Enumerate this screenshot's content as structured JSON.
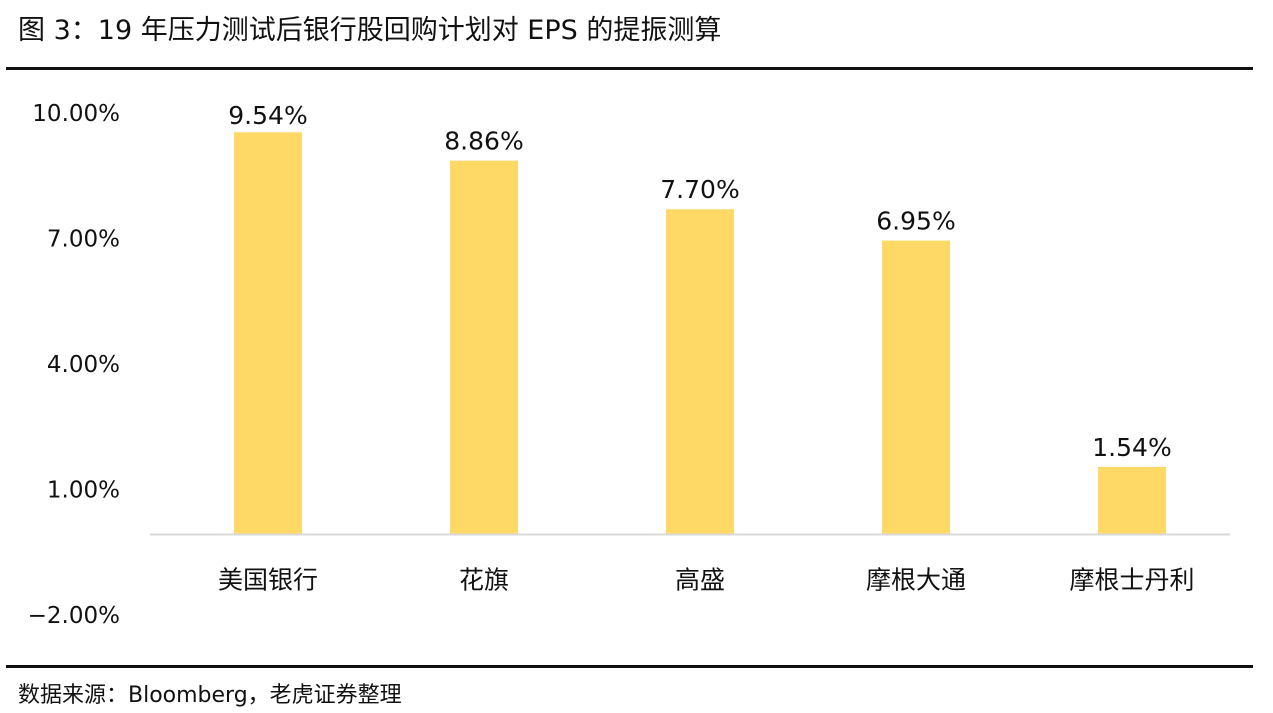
{
  "title": "图 3：19 年压力测试后银行股回购计划对 EPS 的提振测算",
  "source": "数据来源：Bloomberg，老虎证券整理",
  "chart_data": {
    "type": "bar",
    "categories": [
      "美国银行",
      "花旗",
      "高盛",
      "摩根大通",
      "摩根士丹利"
    ],
    "values": [
      9.54,
      8.86,
      7.7,
      6.95,
      1.54
    ],
    "value_labels": [
      "9.54%",
      "8.86%",
      "7.70%",
      "6.95%",
      "1.54%"
    ],
    "ylim": [
      -2.0,
      10.0
    ],
    "yticks": [
      10.0,
      7.0,
      4.0,
      1.0,
      -2.0
    ],
    "ytick_labels": [
      "10.00%",
      "7.00%",
      "4.00%",
      "1.00%",
      "−2.00%"
    ],
    "xlabel": "",
    "ylabel": "",
    "grid": false,
    "legend": "none",
    "bar_color": "#FFD966",
    "axis_color": "#D9D9D9"
  }
}
